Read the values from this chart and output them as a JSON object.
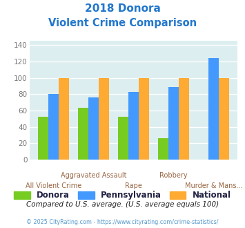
{
  "title_line1": "2018 Donora",
  "title_line2": "Violent Crime Comparison",
  "categories": [
    "All Violent Crime",
    "Aggravated Assault",
    "Rape",
    "Robbery",
    "Murder & Mans..."
  ],
  "donora": [
    52,
    63,
    52,
    26,
    0
  ],
  "pennsylvania": [
    80,
    76,
    83,
    89,
    124
  ],
  "national": [
    100,
    100,
    100,
    100,
    100
  ],
  "colors": {
    "donora": "#77cc22",
    "pennsylvania": "#4499ff",
    "national": "#ffaa33"
  },
  "ylim": [
    0,
    145
  ],
  "yticks": [
    0,
    20,
    40,
    60,
    80,
    100,
    120,
    140
  ],
  "bg_color": "#ddeef0",
  "footnote": "Compared to U.S. average. (U.S. average equals 100)",
  "copyright": "© 2025 CityRating.com - https://www.cityrating.com/crime-statistics/",
  "title_color": "#2277cc",
  "footnote_color": "#222222",
  "copyright_color": "#5599cc",
  "xlabel_top_color": "#996644",
  "xlabel_bot_color": "#996644",
  "ytick_color": "#777777",
  "legend_label_color": "#222244"
}
